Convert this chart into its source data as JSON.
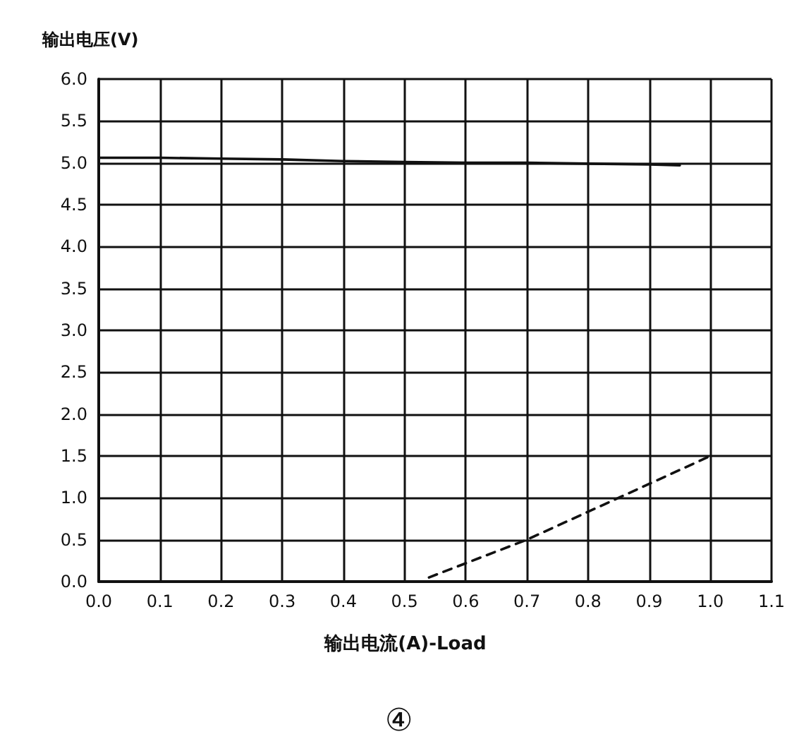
{
  "chart_data": {
    "type": "line",
    "xlabel": "输出电流(A)-Load",
    "ylabel": "输出电压(V)",
    "annotations": [
      "④"
    ],
    "xlim": [
      0,
      1.1
    ],
    "ylim": [
      0,
      6
    ],
    "xticks": [
      {
        "value": 0,
        "label": "0.0"
      },
      {
        "value": 0.1,
        "label": "0.1"
      },
      {
        "value": 0.2,
        "label": "0.2"
      },
      {
        "value": 0.3,
        "label": "0.3"
      },
      {
        "value": 0.4,
        "label": "0.4"
      },
      {
        "value": 0.5,
        "label": "0.5"
      },
      {
        "value": 0.6,
        "label": "0.6"
      },
      {
        "value": 0.7,
        "label": "0.7"
      },
      {
        "value": 0.8,
        "label": "0.8"
      },
      {
        "value": 0.9,
        "label": "0.9"
      },
      {
        "value": 1,
        "label": "1.0"
      },
      {
        "value": 1.1,
        "label": "1.1"
      }
    ],
    "yticks": [
      {
        "value": 0,
        "label": "0.0"
      },
      0.5,
      {
        "value": 1,
        "label": "1.0"
      },
      1.5,
      {
        "value": 2,
        "label": "2.0"
      },
      2.5,
      {
        "value": 3,
        "label": "3.0"
      },
      3.5,
      {
        "value": 4,
        "label": "4.0"
      },
      4.5,
      {
        "value": 5,
        "label": "5.0"
      },
      5.5,
      {
        "value": 6,
        "label": "6.0"
      }
    ],
    "grid": true,
    "marker": "none",
    "series": [
      {
        "color": "#111111",
        "line_style": "solid",
        "x": [
          0,
          0.1,
          0.2,
          0.3,
          0.4,
          0.5,
          0.6,
          0.7,
          0.8,
          0.9,
          0.95
        ],
        "values": [
          5.06,
          5.06,
          5.05,
          5.04,
          5.02,
          5.01,
          5.0,
          5.0,
          4.99,
          4.98,
          4.97
        ]
      },
      {
        "color": "#111111",
        "line_style": "dashed",
        "x": [
          0.54,
          0.7,
          1.0
        ],
        "values": [
          0.05,
          0.5,
          1.5
        ]
      }
    ]
  }
}
